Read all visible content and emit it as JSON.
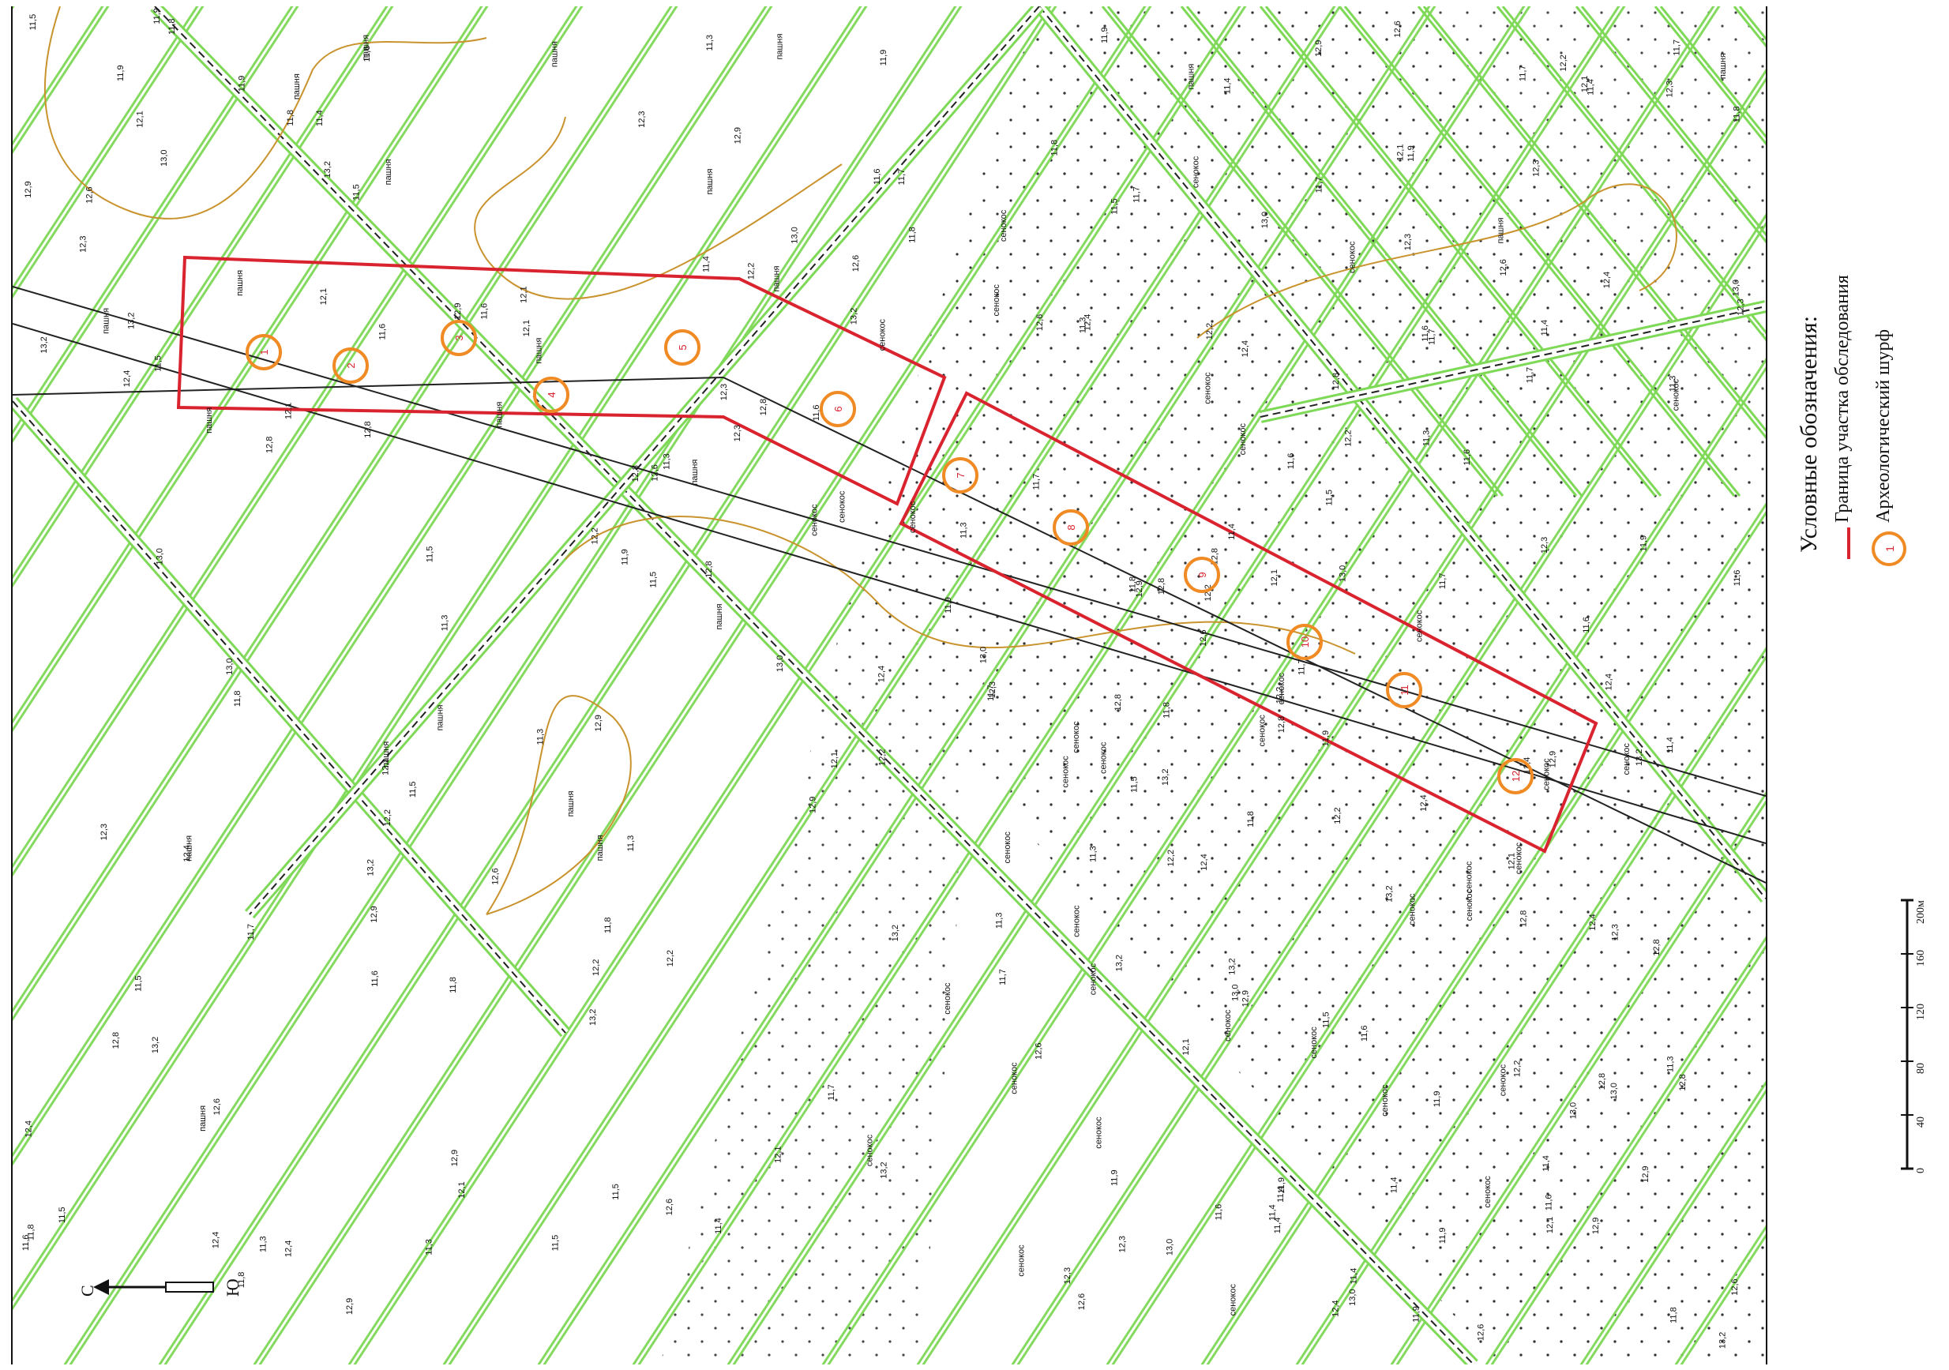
{
  "legend": {
    "title": "Условные обозначения:",
    "items": [
      {
        "label": "Граница участка обследования",
        "symbol": "red-line",
        "color": "#d9232e"
      },
      {
        "label": "Археологический шурф",
        "symbol": "orange-circle",
        "color": "#f08a24",
        "marker_text": "1"
      }
    ]
  },
  "north_arrow": {
    "north_label": "С",
    "south_label": "Ю"
  },
  "scale_bar": {
    "unit_label": "200м",
    "ticks": [
      "0",
      "40",
      "80",
      "120",
      "160"
    ]
  },
  "map": {
    "field_label": "пашня",
    "hay_label": "сенокос",
    "colors": {
      "road": "#7ed957",
      "boundary": "#d9232e",
      "pit": "#f08a24",
      "contour": "#c9932e",
      "line": "#222222"
    },
    "pits": [
      "1",
      "2",
      "3",
      "4",
      "5",
      "6",
      "7",
      "8",
      "9",
      "10",
      "11",
      "12"
    ],
    "elevations": [
      "11,6",
      "12,1",
      "12,8",
      "13,2",
      "11,9",
      "12,4",
      "11,7",
      "12,2",
      "11,4",
      "12,6",
      "13,0",
      "11,8",
      "12,3",
      "11,5",
      "12,9",
      "11,3"
    ]
  }
}
